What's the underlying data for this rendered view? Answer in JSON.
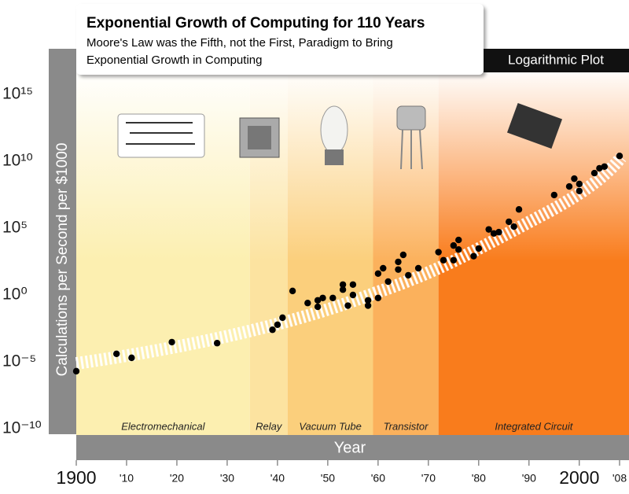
{
  "chart_data": {
    "type": "scatter",
    "title": "Exponential Growth of Computing for 110 Years",
    "subtitle": [
      "Moore's Law was the Fifth, not the First, Paradigm to Bring",
      "Exponential Growth in Computing"
    ],
    "badge": "Logarithmic Plot",
    "y_label": "Calculations per Second per $1000",
    "x_label": "Year",
    "log_scale": true,
    "color": "#000000",
    "xlim": [
      1900,
      2008
    ],
    "ylim": [
      1e-10,
      1e+18
    ],
    "xticks": [
      {
        "value": 1900,
        "label": "1900"
      },
      {
        "value": 1910,
        "label": "'10"
      },
      {
        "value": 1920,
        "label": "'20"
      },
      {
        "value": 1930,
        "label": "'30"
      },
      {
        "value": 1940,
        "label": "'40"
      },
      {
        "value": 1950,
        "label": "'50"
      },
      {
        "value": 1960,
        "label": "'60"
      },
      {
        "value": 1970,
        "label": "'70"
      },
      {
        "value": 1980,
        "label": "'80"
      },
      {
        "value": 1990,
        "label": "'90"
      },
      {
        "value": 2000,
        "label": "2000"
      },
      {
        "value": 2008,
        "label": "'08"
      }
    ],
    "yticks": [
      {
        "value": 1e-10,
        "label": "10⁻¹⁰"
      },
      {
        "value": 1e-05,
        "label": "10⁻⁵"
      },
      {
        "value": 1,
        "label": "10⁰"
      },
      {
        "value": 100000.0,
        "label": "10⁵"
      },
      {
        "value": 10000000000.0,
        "label": "10¹⁰"
      },
      {
        "value": 1000000000000000.0,
        "label": "10¹⁵"
      }
    ],
    "eras": [
      {
        "name": "Electromechanical",
        "start": 1900,
        "end": 1934.5,
        "color": "#fcefb0"
      },
      {
        "name": "Relay",
        "start": 1934.5,
        "end": 1942,
        "color": "#fce3a0"
      },
      {
        "name": "Vacuum Tube",
        "start": 1942,
        "end": 1959,
        "color": "#fbcf7c"
      },
      {
        "name": "Transistor",
        "start": 1959,
        "end": 1972,
        "color": "#fbb15c"
      },
      {
        "name": "Integrated Circuit",
        "start": 1972,
        "end": 2008,
        "color": "#f97c1c"
      }
    ],
    "x": [
      1900,
      1908,
      1911,
      1919,
      1928,
      1939,
      1940,
      1941,
      1943,
      1946,
      1948,
      1948,
      1949,
      1951,
      1953,
      1953,
      1954,
      1955,
      1955,
      1958,
      1958,
      1960,
      1960,
      1961,
      1962,
      1964,
      1964,
      1965,
      1966,
      1968,
      1972,
      1973,
      1975,
      1975,
      1976,
      1976,
      1979,
      1980,
      1982,
      1983,
      1984,
      1986,
      1987,
      1988,
      1995,
      1998,
      1999,
      2000,
      2000,
      2003,
      2004,
      2005,
      2008
    ],
    "values": [
      2e-06,
      4e-05,
      2e-05,
      0.0003,
      0.00025,
      0.0025,
      0.006,
      0.02,
      2,
      0.25,
      0.13,
      0.4,
      0.6,
      0.6,
      6,
      2.5,
      0.16,
      6,
      1,
      0.4,
      0.16,
      0.6,
      40,
      100,
      10,
      80,
      300,
      1000,
      30,
      100,
      1600,
      400,
      5000,
      400,
      13000,
      2500,
      800,
      3000,
      80000,
      40000,
      50000,
      300000,
      130000,
      2500000,
      30000000,
      130000000,
      500000000,
      60000000,
      200000000,
      1300000000,
      3000000000,
      4000000000,
      25000000000
    ]
  }
}
